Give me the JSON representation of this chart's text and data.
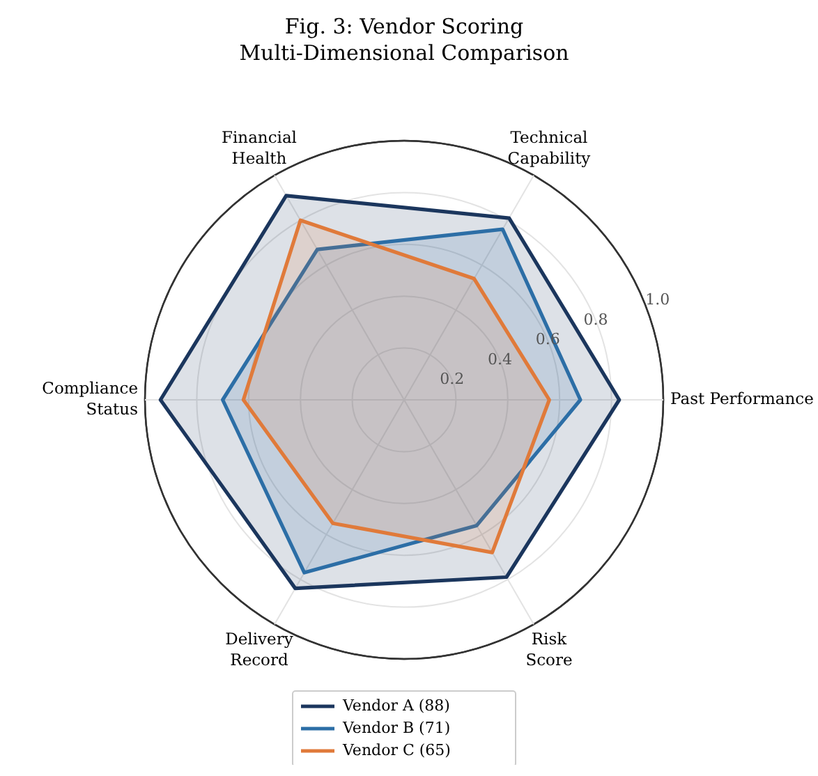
{
  "chart_data": {
    "type": "radar",
    "title": "Fig. 3: Vendor Scoring\nMulti-Dimensional Comparison",
    "categories": [
      "Technical\nCapability",
      "Past Performance",
      "Risk\nScore",
      "Delivery\nRecord",
      "Compliance\nStatus",
      "Financial\nHealth"
    ],
    "ylim": [
      0,
      1
    ],
    "yticks": [
      0.2,
      0.4,
      0.6,
      0.8,
      {
        "value": 1,
        "label": "1.0"
      }
    ],
    "grid": true,
    "legend": "bottom",
    "series": [
      {
        "name": "Vendor A (88)",
        "color": "#1b365d",
        "values": [
          0.81,
          0.83,
          0.79,
          0.84,
          0.94,
          0.91
        ]
      },
      {
        "name": "Vendor B (71)",
        "color": "#2c6ea6",
        "values": [
          0.76,
          0.68,
          0.56,
          0.77,
          0.7,
          0.67
        ]
      },
      {
        "name": "Vendor C (65)",
        "color": "#e07a3a",
        "values": [
          0.54,
          0.56,
          0.68,
          0.55,
          0.62,
          0.8
        ]
      }
    ]
  }
}
